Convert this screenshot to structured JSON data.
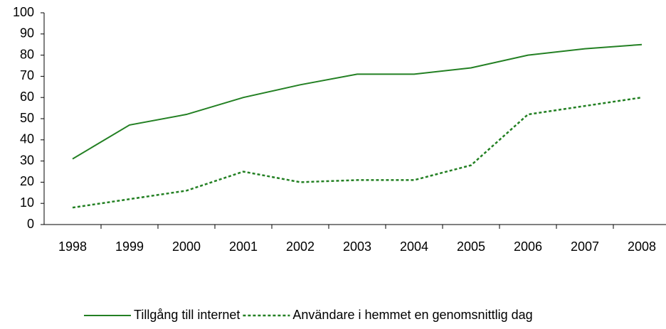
{
  "chart_data": {
    "type": "line",
    "categories": [
      "1998",
      "1999",
      "2000",
      "2001",
      "2002",
      "2003",
      "2004",
      "2005",
      "2006",
      "2007",
      "2008"
    ],
    "series": [
      {
        "name": "Tillgång till internet",
        "color": "#238023",
        "dashed": false,
        "values": [
          31,
          47,
          52,
          60,
          66,
          71,
          71,
          74,
          80,
          83,
          85
        ]
      },
      {
        "name": "Användare i hemmet en genomsnittlig dag",
        "color": "#238023",
        "dashed": true,
        "values": [
          8,
          12,
          16,
          25,
          20,
          21,
          21,
          28,
          52,
          56,
          60
        ]
      }
    ],
    "ylim": [
      0,
      100
    ],
    "yticks": [
      0,
      10,
      20,
      30,
      40,
      50,
      60,
      70,
      80,
      90,
      100
    ],
    "grid": false,
    "legend": "bottom"
  }
}
